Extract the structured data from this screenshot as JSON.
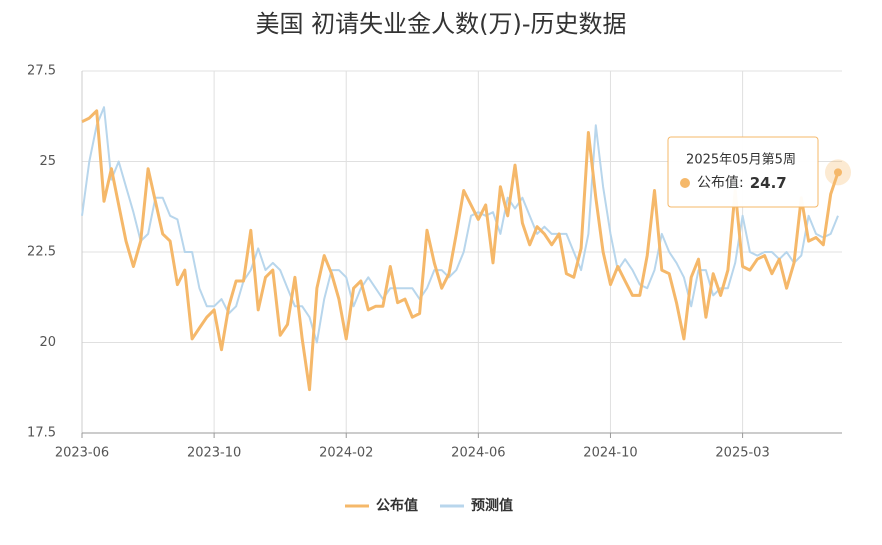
{
  "chart_data": {
    "type": "line",
    "title": "美国 初请失业金人数(万)-历史数据",
    "categories": [
      "2023-06",
      null,
      null,
      null,
      null,
      null,
      null,
      null,
      null,
      null,
      null,
      null,
      null,
      null,
      null,
      null,
      null,
      null,
      "2023-10",
      null,
      null,
      null,
      null,
      null,
      null,
      null,
      null,
      null,
      null,
      null,
      null,
      null,
      null,
      null,
      null,
      null,
      "2024-02",
      null,
      null,
      null,
      null,
      null,
      null,
      null,
      null,
      null,
      null,
      null,
      null,
      null,
      null,
      null,
      null,
      null,
      "2024-06",
      null,
      null,
      null,
      null,
      null,
      null,
      null,
      null,
      null,
      null,
      null,
      null,
      null,
      null,
      null,
      null,
      null,
      "2024-10",
      null,
      null,
      null,
      null,
      null,
      null,
      null,
      null,
      null,
      null,
      null,
      null,
      null,
      null,
      null,
      null,
      null,
      "2025-03",
      null,
      null,
      null,
      null,
      null,
      null,
      null,
      null,
      null,
      null,
      null,
      null,
      null
    ],
    "series": [
      {
        "name": "公布值",
        "color": "#f5b86a",
        "values": [
          26.1,
          26.2,
          26.4,
          23.9,
          24.8,
          23.8,
          22.8,
          22.1,
          22.8,
          24.8,
          23.9,
          23.0,
          22.8,
          21.6,
          22.0,
          20.1,
          20.4,
          20.7,
          20.9,
          19.8,
          21.0,
          21.7,
          21.7,
          23.1,
          20.9,
          21.8,
          22.0,
          20.2,
          20.5,
          21.8,
          20.1,
          18.7,
          21.5,
          22.4,
          21.9,
          21.2,
          20.1,
          21.5,
          21.7,
          20.9,
          21.0,
          21.0,
          22.1,
          21.1,
          21.2,
          20.7,
          20.8,
          23.1,
          22.2,
          21.5,
          21.9,
          23.0,
          24.2,
          23.8,
          23.4,
          23.8,
          22.2,
          24.3,
          23.5,
          24.9,
          23.3,
          22.7,
          23.2,
          23.0,
          22.7,
          23.0,
          21.9,
          21.8,
          22.6,
          25.8,
          24.0,
          22.5,
          21.6,
          22.1,
          21.7,
          21.3,
          21.3,
          22.4,
          24.2,
          22.0,
          21.9,
          21.1,
          20.1,
          21.8,
          22.3,
          20.7,
          21.9,
          21.3,
          22.0,
          24.2,
          22.1,
          22.0,
          22.3,
          22.4,
          21.9,
          22.3,
          21.5,
          22.2,
          24.0,
          22.8,
          22.9,
          22.7,
          24.1,
          24.7
        ]
      },
      {
        "name": "预测值",
        "color": "#b8d6ec",
        "values": [
          23.5,
          25.0,
          26.0,
          26.5,
          24.5,
          25.0,
          24.3,
          23.6,
          22.8,
          23.0,
          24.0,
          24.0,
          23.5,
          23.4,
          22.5,
          22.5,
          21.5,
          21.0,
          21.0,
          21.2,
          20.8,
          21.0,
          21.7,
          22.0,
          22.6,
          22.0,
          22.2,
          22.0,
          21.5,
          21.0,
          21.0,
          20.7,
          20.0,
          21.2,
          22.0,
          22.0,
          21.8,
          21.0,
          21.5,
          21.8,
          21.5,
          21.2,
          21.5,
          21.5,
          21.5,
          21.5,
          21.2,
          21.5,
          22.0,
          22.0,
          21.8,
          22.0,
          22.5,
          23.5,
          23.6,
          23.5,
          23.6,
          23.0,
          24.0,
          23.7,
          24.0,
          23.5,
          23.0,
          23.2,
          23.0,
          23.0,
          23.0,
          22.5,
          22.0,
          23.0,
          26.0,
          24.3,
          23.0,
          22.0,
          22.3,
          22.0,
          21.6,
          21.5,
          22.0,
          23.0,
          22.5,
          22.2,
          21.8,
          21.0,
          22.0,
          22.0,
          21.3,
          21.5,
          21.5,
          22.2,
          23.5,
          22.5,
          22.4,
          22.5,
          22.5,
          22.3,
          22.5,
          22.2,
          22.4,
          23.5,
          23.0,
          22.9,
          23.0,
          23.5
        ]
      }
    ],
    "ylim": [
      17.5,
      27.5
    ],
    "yticks": [
      17.5,
      20,
      22.5,
      25,
      27.5
    ],
    "grid": true,
    "legend": "bottom",
    "tooltip": {
      "title": "2025年05月第5周",
      "label": "公布值:",
      "value": 24.7
    }
  }
}
